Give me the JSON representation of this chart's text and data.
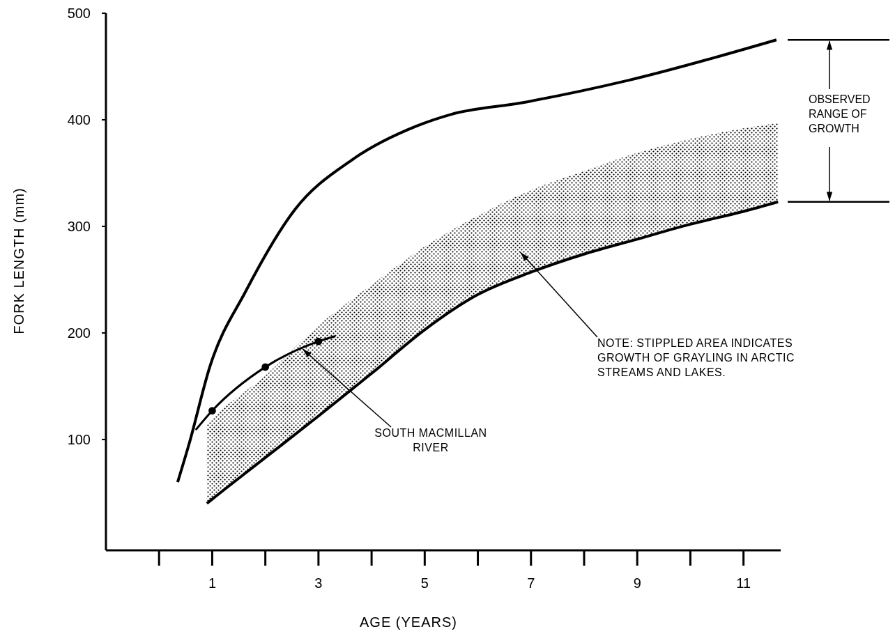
{
  "chart_data": {
    "type": "line",
    "xlabel": "AGE (YEARS)",
    "ylabel": "FORK LENGTH (mm)",
    "xlim": [
      -1,
      11.7
    ],
    "ylim": [
      -4,
      500
    ],
    "xticks": [
      1,
      3,
      5,
      7,
      9,
      11
    ],
    "yticks": [
      100,
      200,
      300,
      400,
      500
    ],
    "grid": false,
    "series": [
      {
        "color": "#000000",
        "x": [
          0.35,
          0.56,
          0.96,
          1.63,
          2.56,
          3.62,
          4.84,
          5.49,
          6.83,
          8.83,
          11.62
        ],
        "values": [
          60,
          95,
          169,
          239,
          316,
          362,
          394,
          405,
          416,
          437,
          475
        ]
      },
      {
        "color": "#000000",
        "x": [
          0.9,
          1,
          2,
          3,
          4,
          5,
          6,
          7,
          8,
          9,
          10,
          11,
          11.65
        ],
        "values": [
          40,
          44,
          83,
          122,
          162,
          203,
          236,
          257,
          274,
          288,
          302,
          314,
          323
        ],
        "lower": [
          40,
          44,
          83,
          122,
          162,
          203,
          236,
          257,
          274,
          288,
          302,
          314,
          323
        ],
        "upper": [
          115,
          120,
          160,
          207,
          245,
          281,
          310,
          334,
          352,
          369,
          382,
          392,
          397
        ]
      },
      {
        "color": "#000000",
        "x": [
          0.69,
          1,
          2,
          3,
          3.32
        ],
        "values": [
          109,
          127,
          168,
          192,
          197
        ]
      },
      {
        "type": "scatter",
        "color": "#000000",
        "marker": "circle",
        "x": [
          1,
          2,
          3
        ],
        "values": [
          127,
          168,
          192
        ]
      }
    ],
    "annotations": [
      {
        "text": "SOUTH MACMILLAN RIVER",
        "x": 2.7,
        "y": 185
      },
      "NOTE: STIPPLED AREA INDICATES GROWTH OF GRAYLING IN ARCTIC STREAMS AND LAKES.",
      "OBSERVED RANGE OF GROWTH"
    ]
  }
}
